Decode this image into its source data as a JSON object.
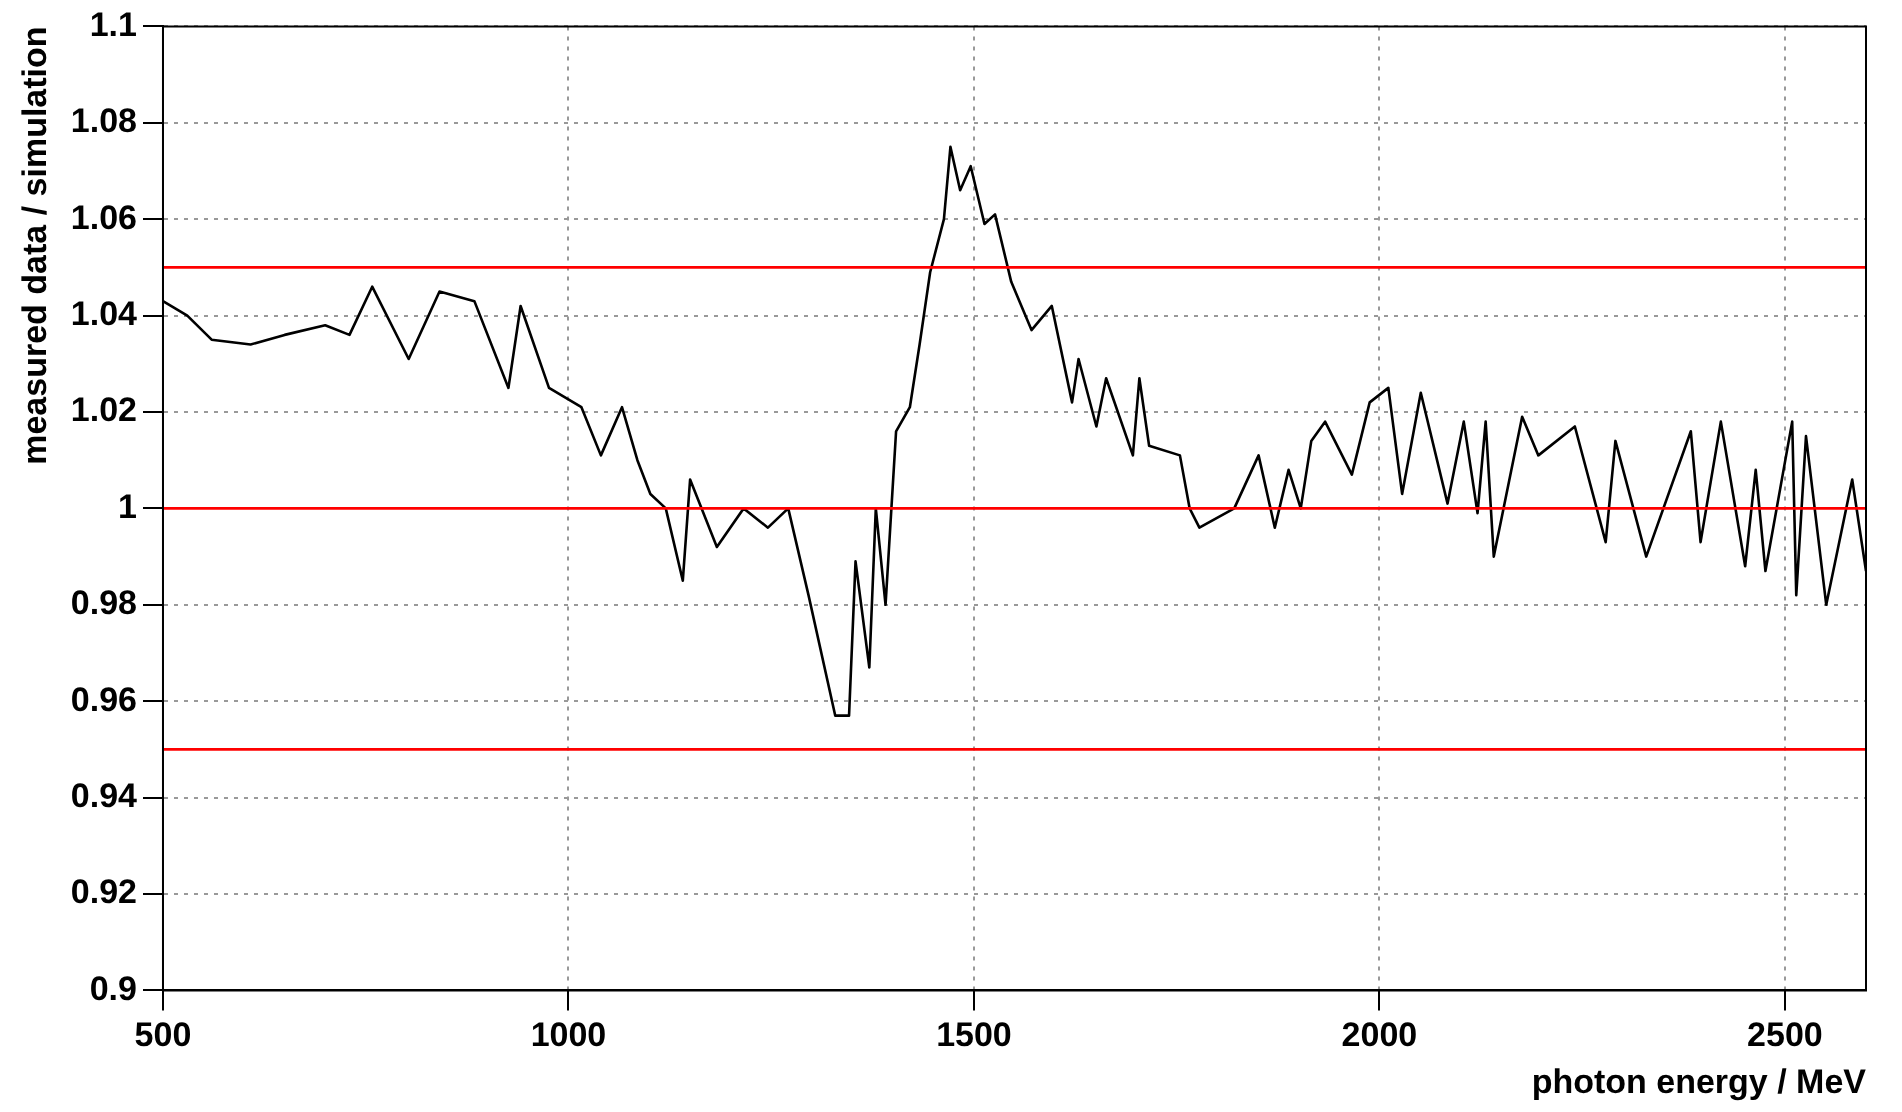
{
  "chart_data": {
    "type": "line",
    "xlabel": "photon energy / MeV",
    "ylabel": "measured data / simulation",
    "x": [
      500,
      530,
      560,
      608,
      650,
      700,
      730,
      758,
      803,
      841,
      884,
      926,
      941,
      976,
      1016,
      1040,
      1066,
      1085,
      1101,
      1120,
      1141,
      1150,
      1183,
      1216,
      1246,
      1271,
      1296,
      1329,
      1346,
      1354,
      1371,
      1379,
      1391,
      1404,
      1421,
      1433,
      1446,
      1463,
      1471,
      1483,
      1496,
      1513,
      1526,
      1546,
      1571,
      1596,
      1621,
      1629,
      1651,
      1663,
      1696,
      1704,
      1716,
      1754,
      1766,
      1778,
      1821,
      1851,
      1871,
      1888,
      1903,
      1916,
      1933,
      1966,
      1988,
      2011,
      2028,
      2051,
      2084,
      2104,
      2121,
      2131,
      2141,
      2176,
      2196,
      2241,
      2279,
      2291,
      2329,
      2384,
      2396,
      2421,
      2451,
      2464,
      2476,
      2509,
      2514,
      2526,
      2551,
      2583,
      2600
    ],
    "series": [
      {
        "color": "#000000",
        "values": [
          1.043,
          1.04,
          1.035,
          1.034,
          1.036,
          1.038,
          1.036,
          1.046,
          1.031,
          1.045,
          1.043,
          1.025,
          1.042,
          1.025,
          1.021,
          1.011,
          1.021,
          1.01,
          1.003,
          1.0,
          0.985,
          1.006,
          0.992,
          1.0,
          0.996,
          1.0,
          0.982,
          0.957,
          0.957,
          0.989,
          0.967,
          1.0,
          0.98,
          1.016,
          1.021,
          1.034,
          1.049,
          1.06,
          1.075,
          1.066,
          1.071,
          1.059,
          1.061,
          1.047,
          1.037,
          1.042,
          1.022,
          1.031,
          1.017,
          1.027,
          1.011,
          1.027,
          1.013,
          1.011,
          1.0,
          0.996,
          1.0,
          1.011,
          0.996,
          1.008,
          1.0,
          1.014,
          1.018,
          1.007,
          1.022,
          1.025,
          1.003,
          1.024,
          1.001,
          1.018,
          0.999,
          1.018,
          0.99,
          1.019,
          1.011,
          1.017,
          0.993,
          1.014,
          0.99,
          1.016,
          0.993,
          1.018,
          0.988,
          1.008,
          0.987,
          1.018,
          0.982,
          1.015,
          0.98,
          1.006,
          0.987
        ]
      }
    ],
    "xlim": [
      500,
      2600
    ],
    "xticks": [
      500,
      1000,
      1500,
      2000,
      2500
    ],
    "ylim": [
      0.9,
      1.1
    ],
    "yticks": [
      0.9,
      0.92,
      0.94,
      0.96,
      0.98,
      1,
      1.02,
      1.04,
      1.06,
      1.08,
      1.1
    ],
    "ref_lines": [
      {
        "axis": "y",
        "value": 1.05,
        "color": "#ff0000"
      },
      {
        "axis": "y",
        "value": 1,
        "color": "#ff0000"
      },
      {
        "axis": "y",
        "value": 0.95,
        "color": "#ff0000"
      }
    ],
    "grid": true,
    "legend": false,
    "marker": "none",
    "line_style": "solid"
  }
}
